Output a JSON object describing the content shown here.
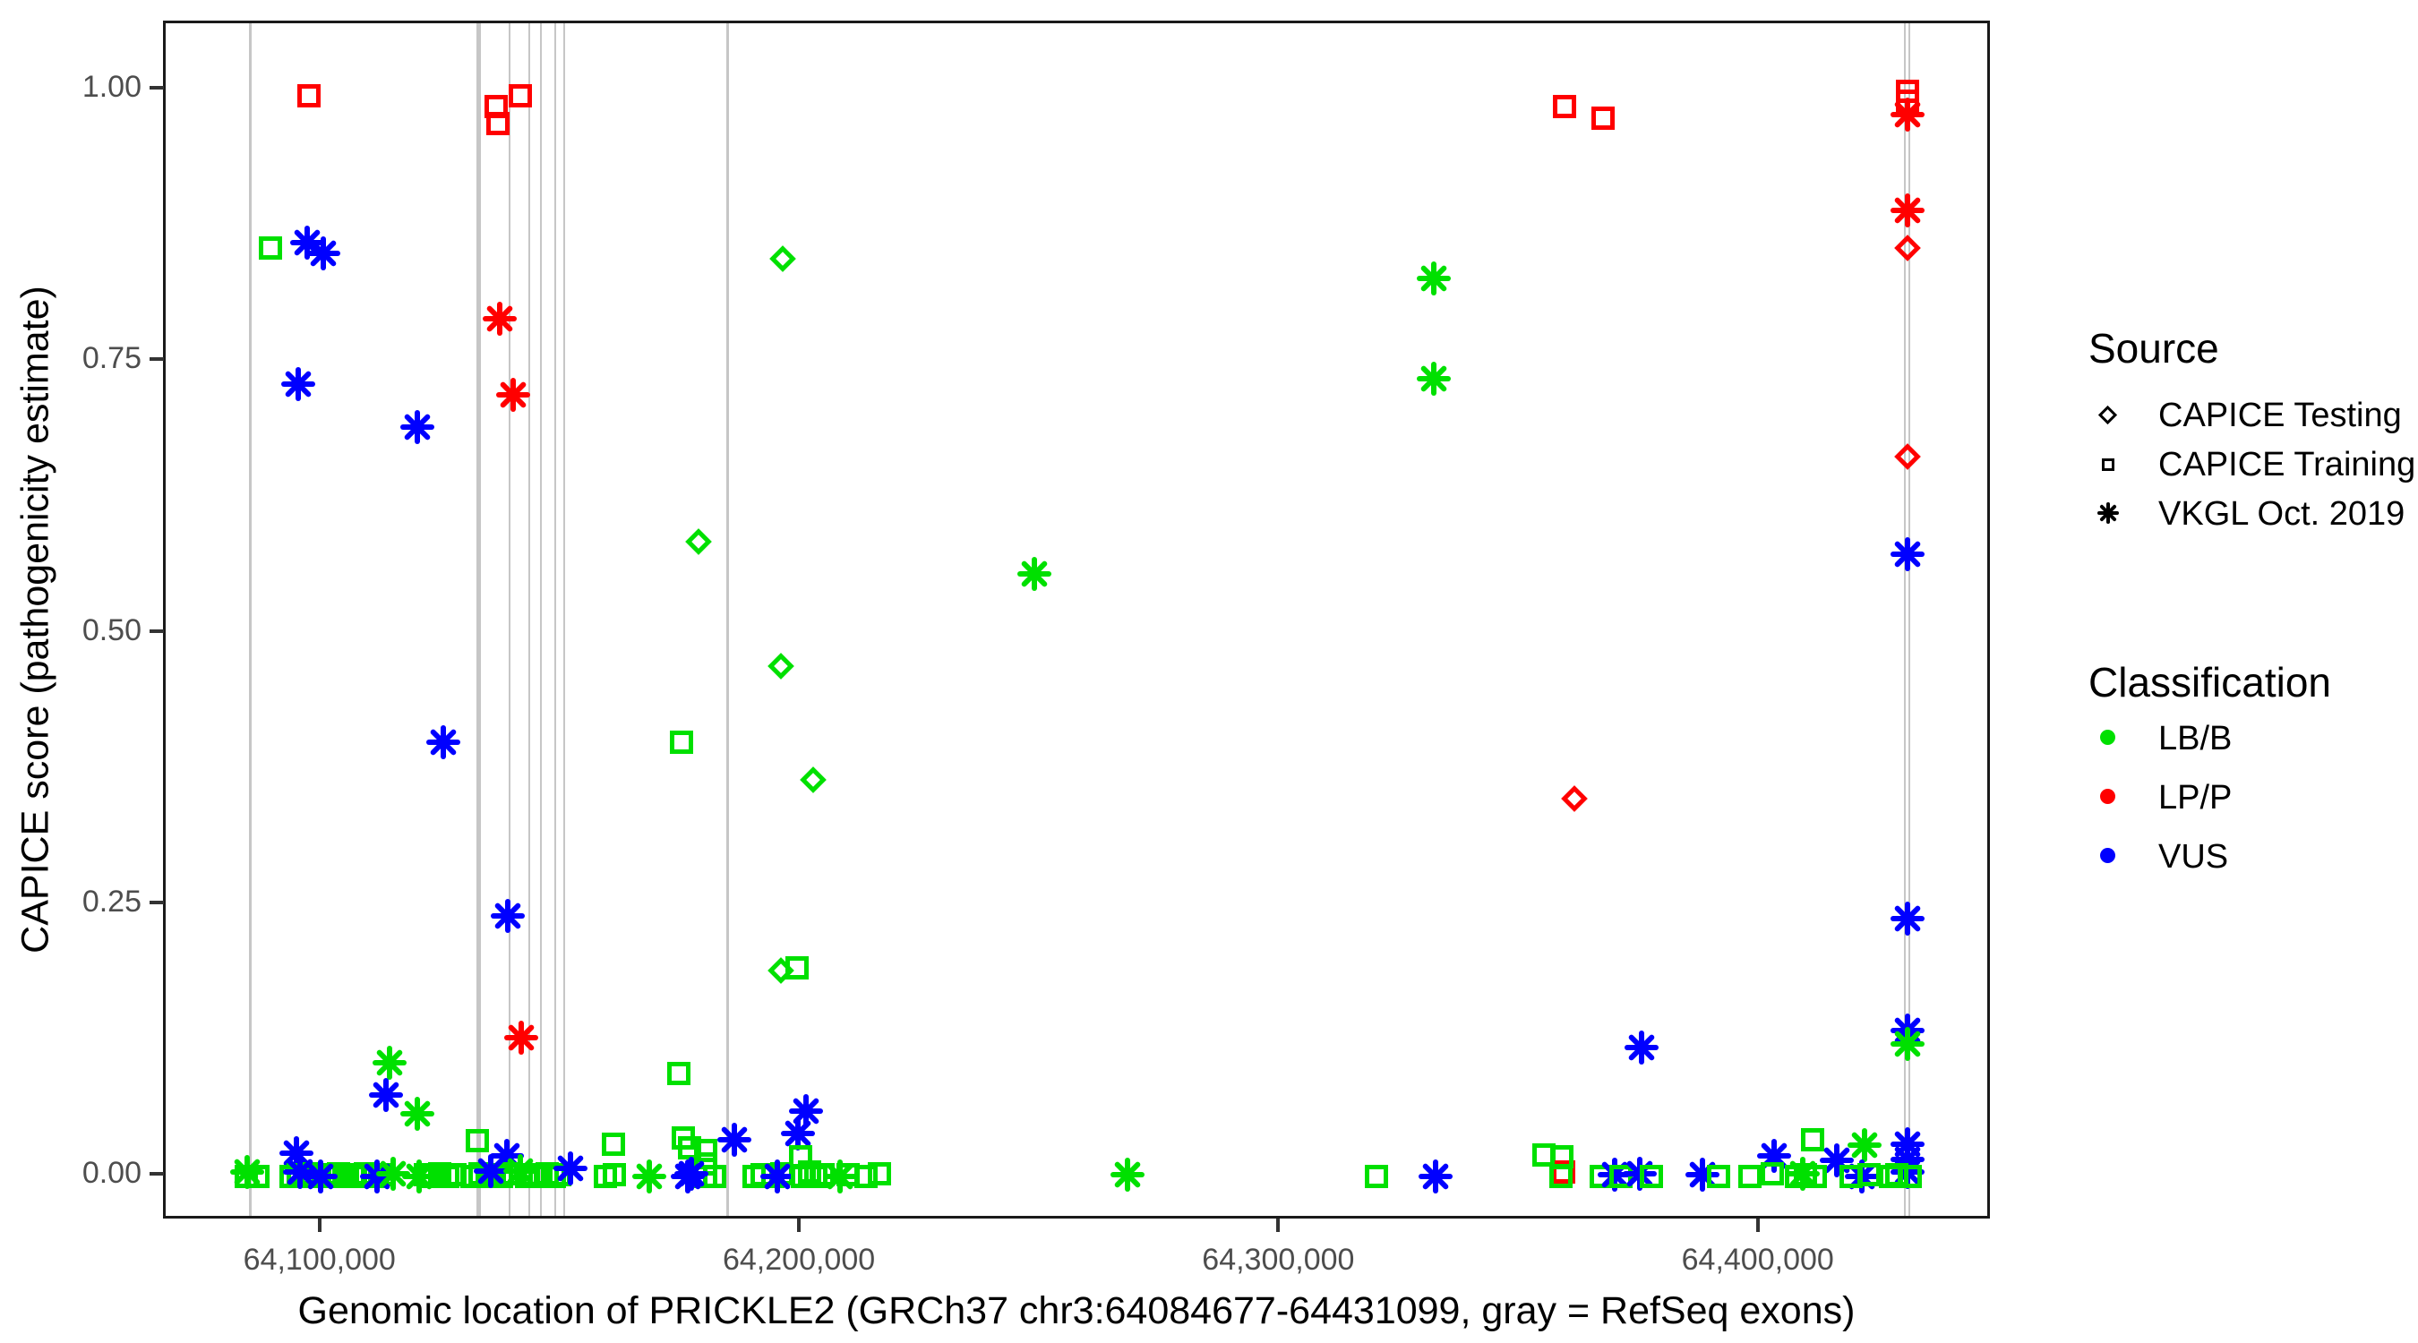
{
  "chart_data": {
    "type": "scatter",
    "xlabel": "Genomic location of PRICKLE2 (GRCh37 chr3:64084677-64431099, gray = RefSeq exons)",
    "ylabel": "CAPICE score (pathogenicity estimate)",
    "x_ticks": [
      {
        "label": "64,100,000",
        "value": 64100000
      },
      {
        "label": "64,200,000",
        "value": 64200000
      },
      {
        "label": "64,300,000",
        "value": 64300000
      },
      {
        "label": "64,400,000",
        "value": 64400000
      }
    ],
    "y_ticks": [
      {
        "label": "1.00",
        "value": 1.0
      },
      {
        "label": "0.75",
        "value": 0.75
      },
      {
        "label": "0.50",
        "value": 0.5
      },
      {
        "label": "0.25",
        "value": 0.25
      },
      {
        "label": "0.00",
        "value": 0.0
      }
    ],
    "x_range": [
      64067356,
      64448432
    ],
    "y_range": [
      -0.041,
      1.062
    ],
    "grid": false,
    "legend_position": "right",
    "legend": {
      "source_title": "Source",
      "source_items": [
        {
          "label": "CAPICE Testing",
          "marker": "diamond-outline-icon"
        },
        {
          "label": "CAPICE Training",
          "marker": "square-outline-icon"
        },
        {
          "label": "VKGL Oct. 2019",
          "marker": "asterisk-icon"
        }
      ],
      "class_title": "Classification",
      "class_items": [
        {
          "label": "LB/B",
          "color": "#00e000"
        },
        {
          "label": "LP/P",
          "color": "#ff0000"
        },
        {
          "label": "VUS",
          "color": "#0000ff"
        }
      ]
    },
    "colors": {
      "LB/B": "#00e000",
      "LP/P": "#ff0000",
      "VUS": "#0000ff"
    },
    "exon_color": "#c6c6c6",
    "exons_note": "gray vertical lines = RefSeq exons; objects {pos,w} pos=genomic, w=px width",
    "exons": [
      {
        "pos": 64085100,
        "w": 3
      },
      {
        "pos": 64132700,
        "w": 5
      },
      {
        "pos": 64139100,
        "w": 2
      },
      {
        "pos": 64143200,
        "w": 2
      },
      {
        "pos": 64145600,
        "w": 2
      },
      {
        "pos": 64148600,
        "w": 2
      },
      {
        "pos": 64150500,
        "w": 2
      },
      {
        "pos": 64184500,
        "w": 3
      },
      {
        "pos": 64430100,
        "w": 2
      },
      {
        "pos": 64431000,
        "w": 2
      }
    ],
    "points_format": [
      "genomic_position",
      "capice_score",
      "source",
      "classification"
    ],
    "points": [
      [
        64097200,
        0.995,
        "training",
        "LP/P"
      ],
      [
        64089200,
        0.855,
        "training",
        "LB/B"
      ],
      [
        64096900,
        0.86,
        "vkgl",
        "VUS"
      ],
      [
        64100200,
        0.85,
        "vkgl",
        "VUS"
      ],
      [
        64095000,
        0.73,
        "vkgl",
        "VUS"
      ],
      [
        64119800,
        0.69,
        "vkgl",
        "VUS"
      ],
      [
        64125200,
        0.4,
        "vkgl",
        "VUS"
      ],
      [
        64114000,
        0.105,
        "vkgl",
        "LB/B"
      ],
      [
        64113300,
        0.075,
        "vkgl",
        "VUS"
      ],
      [
        64119800,
        0.058,
        "vkgl",
        "LB/B"
      ],
      [
        64136300,
        0.985,
        "training",
        "LP/P"
      ],
      [
        64136600,
        0.97,
        "training",
        "LP/P"
      ],
      [
        64141300,
        0.995,
        "training",
        "LP/P"
      ],
      [
        64137000,
        0.79,
        "vkgl",
        "LP/P"
      ],
      [
        64139800,
        0.72,
        "vkgl",
        "LP/P"
      ],
      [
        64138700,
        0.24,
        "vkgl",
        "VUS"
      ],
      [
        64141500,
        0.128,
        "vkgl",
        "LP/P"
      ],
      [
        64196000,
        0.845,
        "testing",
        "LB/B"
      ],
      [
        64178500,
        0.585,
        "testing",
        "LB/B"
      ],
      [
        64195700,
        0.47,
        "testing",
        "LB/B"
      ],
      [
        64202400,
        0.365,
        "testing",
        "LB/B"
      ],
      [
        64175000,
        0.4,
        "training",
        "LB/B"
      ],
      [
        64174400,
        0.095,
        "training",
        "LB/B"
      ],
      [
        64195700,
        0.19,
        "testing",
        "LB/B"
      ],
      [
        64199100,
        0.192,
        "training",
        "LB/B"
      ],
      [
        64248500,
        0.555,
        "vkgl",
        "LB/B"
      ],
      [
        64331900,
        0.827,
        "vkgl",
        "LB/B"
      ],
      [
        64331900,
        0.735,
        "vkgl",
        "LB/B"
      ],
      [
        64359100,
        0.985,
        "training",
        "LP/P"
      ],
      [
        64367100,
        0.975,
        "training",
        "LP/P"
      ],
      [
        64361200,
        0.348,
        "testing",
        "LP/P"
      ],
      [
        64375200,
        0.119,
        "vkgl",
        "VUS"
      ],
      [
        64430700,
        0.999,
        "training",
        "LP/P"
      ],
      [
        64430700,
        0.99,
        "training",
        "LP/P"
      ],
      [
        64430700,
        0.978,
        "vkgl",
        "LP/P"
      ],
      [
        64430700,
        0.89,
        "vkgl",
        "LP/P"
      ],
      [
        64430700,
        0.855,
        "testing",
        "LP/P"
      ],
      [
        64430700,
        0.663,
        "testing",
        "LP/P"
      ],
      [
        64430700,
        0.573,
        "vkgl",
        "VUS"
      ],
      [
        64430700,
        0.238,
        "vkgl",
        "VUS"
      ],
      [
        64430700,
        0.135,
        "vkgl",
        "VUS"
      ],
      [
        64430700,
        0.122,
        "vkgl",
        "LB/B"
      ],
      [
        64430700,
        0.03,
        "vkgl",
        "VUS"
      ],
      [
        64430700,
        0.016,
        "vkgl",
        "VUS"
      ],
      [
        64430700,
        0.004,
        "vkgl",
        "VUS"
      ],
      [
        64094600,
        0.022,
        "vkgl",
        "VUS"
      ],
      [
        64132400,
        0.033,
        "training",
        "LB/B"
      ],
      [
        64138500,
        0.019,
        "vkgl",
        "VUS"
      ],
      [
        64160800,
        0.03,
        "training",
        "LB/B"
      ],
      [
        64175300,
        0.036,
        "training",
        "LB/B"
      ],
      [
        64176600,
        0.027,
        "training",
        "LB/B"
      ],
      [
        64185900,
        0.034,
        "vkgl",
        "VUS"
      ],
      [
        64201000,
        0.06,
        "vkgl",
        "VUS"
      ],
      [
        64199300,
        0.04,
        "vkgl",
        "VUS"
      ],
      [
        64199800,
        0.018,
        "training",
        "LB/B"
      ],
      [
        64354900,
        0.02,
        "training",
        "LB/B"
      ],
      [
        64358900,
        0.004,
        "training",
        "LP/P"
      ],
      [
        64402900,
        0.019,
        "vkgl",
        "VUS"
      ],
      [
        64410900,
        0.034,
        "training",
        "LB/B"
      ],
      [
        64415900,
        0.015,
        "vkgl",
        "VUS"
      ],
      [
        64421700,
        0.029,
        "vkgl",
        "LB/B"
      ],
      [
        64084400,
        0.004,
        "vkgl",
        "LB/B"
      ],
      [
        64084200,
        0.0,
        "training",
        "LB/B"
      ],
      [
        64086600,
        0.0,
        "training",
        "LB/B"
      ],
      [
        64093500,
        0.0,
        "training",
        "LB/B"
      ],
      [
        64095000,
        0.002,
        "training",
        "LB/B"
      ],
      [
        64096300,
        0.0,
        "training",
        "LB/B"
      ],
      [
        64097800,
        0.003,
        "training",
        "LB/B"
      ],
      [
        64099100,
        0.0,
        "training",
        "LB/B"
      ],
      [
        64100600,
        0.002,
        "training",
        "LB/B"
      ],
      [
        64102100,
        0.0,
        "training",
        "LB/B"
      ],
      [
        64103400,
        0.003,
        "training",
        "LB/B"
      ],
      [
        64105300,
        0.0,
        "training",
        "LB/B"
      ],
      [
        64106600,
        0.002,
        "training",
        "LB/B"
      ],
      [
        64095400,
        0.004,
        "vkgl",
        "VUS"
      ],
      [
        64099700,
        0.0,
        "vkgl",
        "VUS"
      ],
      [
        64108100,
        0.0,
        "training",
        "LB/B"
      ],
      [
        64109000,
        0.003,
        "training",
        "LB/B"
      ],
      [
        64110900,
        0.0,
        "training",
        "LB/B"
      ],
      [
        64112700,
        0.002,
        "training",
        "LB/B"
      ],
      [
        64111400,
        0.0,
        "vkgl",
        "VUS"
      ],
      [
        64114800,
        0.003,
        "vkgl",
        "LB/B"
      ],
      [
        64120200,
        0.0,
        "vkgl",
        "LB/B"
      ],
      [
        64121500,
        0.002,
        "training",
        "LB/B"
      ],
      [
        64123000,
        0.0,
        "training",
        "LB/B"
      ],
      [
        64124500,
        0.003,
        "training",
        "LB/B"
      ],
      [
        64126200,
        0.0,
        "training",
        "LB/B"
      ],
      [
        64127700,
        0.002,
        "training",
        "LB/B"
      ],
      [
        64131200,
        0.0,
        "training",
        "LB/B"
      ],
      [
        64132900,
        0.003,
        "training",
        "LB/B"
      ],
      [
        64134400,
        0.0,
        "training",
        "LB/B"
      ],
      [
        64135900,
        0.002,
        "training",
        "LB/B"
      ],
      [
        64137400,
        0.0,
        "training",
        "LB/B"
      ],
      [
        64138900,
        0.003,
        "training",
        "LB/B"
      ],
      [
        64135200,
        0.005,
        "vkgl",
        "VUS"
      ],
      [
        64141300,
        0.005,
        "vkgl",
        "LB/B"
      ],
      [
        64142600,
        0.0,
        "training",
        "LB/B"
      ],
      [
        64144100,
        0.002,
        "training",
        "LB/B"
      ],
      [
        64145400,
        0.0,
        "training",
        "LB/B"
      ],
      [
        64146900,
        0.003,
        "training",
        "LB/B"
      ],
      [
        64148400,
        0.0,
        "training",
        "LB/B"
      ],
      [
        64149500,
        0.002,
        "training",
        "LB/B"
      ],
      [
        64151800,
        0.008,
        "vkgl",
        "VUS"
      ],
      [
        64159100,
        0.0,
        "training",
        "LB/B"
      ],
      [
        64161000,
        0.002,
        "training",
        "LB/B"
      ],
      [
        64168200,
        0.0,
        "vkgl",
        "LB/B"
      ],
      [
        64180000,
        0.0,
        "training",
        "LB/B"
      ],
      [
        64180000,
        0.012,
        "training",
        "LB/B"
      ],
      [
        64180000,
        0.024,
        "training",
        "LB/B"
      ],
      [
        64181900,
        0.0,
        "training",
        "LB/B"
      ],
      [
        64176200,
        0.0,
        "vkgl",
        "VUS"
      ],
      [
        64177000,
        0.003,
        "vkgl",
        "VUS"
      ],
      [
        64190000,
        0.0,
        "training",
        "LB/B"
      ],
      [
        64191800,
        0.002,
        "training",
        "LB/B"
      ],
      [
        64194000,
        0.0,
        "training",
        "LB/B"
      ],
      [
        64195800,
        0.003,
        "training",
        "LB/B"
      ],
      [
        64194900,
        0.0,
        "vkgl",
        "VUS"
      ],
      [
        64200100,
        0.0,
        "training",
        "LB/B"
      ],
      [
        64201600,
        0.004,
        "training",
        "LB/B"
      ],
      [
        64203000,
        0.0,
        "training",
        "LB/B"
      ],
      [
        64204500,
        0.002,
        "training",
        "LB/B"
      ],
      [
        64208000,
        0.0,
        "vkgl",
        "LB/B"
      ],
      [
        64209700,
        0.002,
        "training",
        "LB/B"
      ],
      [
        64213500,
        0.0,
        "training",
        "LB/B"
      ],
      [
        64216300,
        0.003,
        "training",
        "LB/B"
      ],
      [
        64268000,
        0.002,
        "vkgl",
        "LB/B"
      ],
      [
        64320000,
        0.0,
        "training",
        "LB/B"
      ],
      [
        64332300,
        0.0,
        "vkgl",
        "VUS"
      ],
      [
        64358400,
        0.0,
        "training",
        "LB/B"
      ],
      [
        64358600,
        0.018,
        "training",
        "LB/B"
      ],
      [
        64366800,
        0.0,
        "training",
        "LB/B"
      ],
      [
        64369600,
        0.002,
        "vkgl",
        "VUS"
      ],
      [
        64371000,
        0.0,
        "training",
        "LB/B"
      ],
      [
        64374900,
        0.003,
        "vkgl",
        "VUS"
      ],
      [
        64377300,
        0.0,
        "training",
        "LB/B"
      ],
      [
        64387900,
        0.002,
        "vkgl",
        "VUS"
      ],
      [
        64391300,
        0.0,
        "training",
        "LB/B"
      ],
      [
        64397800,
        0.0,
        "training",
        "LB/B"
      ],
      [
        64402500,
        0.003,
        "training",
        "LB/B"
      ],
      [
        64407500,
        0.0,
        "training",
        "LB/B"
      ],
      [
        64409400,
        0.002,
        "training",
        "LB/B"
      ],
      [
        64411400,
        0.0,
        "training",
        "LB/B"
      ],
      [
        64408800,
        0.003,
        "vkgl",
        "LB/B"
      ],
      [
        64421100,
        0.0,
        "vkgl",
        "VUS"
      ],
      [
        64418900,
        0.0,
        "training",
        "LB/B"
      ],
      [
        64422600,
        0.002,
        "training",
        "LB/B"
      ],
      [
        64427100,
        0.0,
        "training",
        "LB/B"
      ],
      [
        64428400,
        0.002,
        "training",
        "LB/B"
      ],
      [
        64431300,
        0.0,
        "training",
        "LB/B"
      ]
    ]
  }
}
